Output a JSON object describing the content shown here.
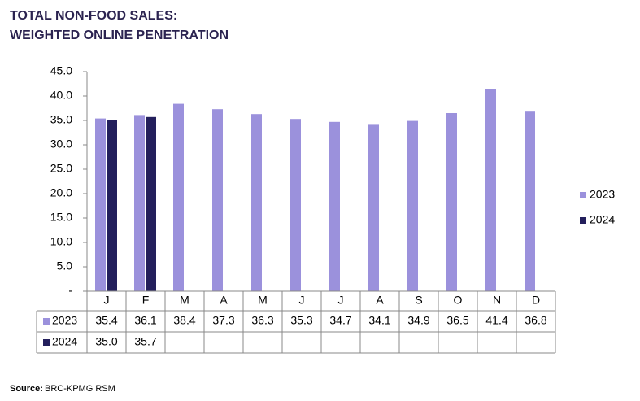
{
  "chart_data": {
    "type": "bar",
    "title": "TOTAL NON-FOOD SALES:",
    "subtitle": "WEIGHTED ONLINE PENETRATION",
    "categories": [
      "J",
      "F",
      "M",
      "A",
      "M",
      "J",
      "J",
      "A",
      "S",
      "O",
      "N",
      "D"
    ],
    "series": [
      {
        "name": "2023",
        "color": "#9b91dc",
        "values": [
          35.4,
          36.1,
          38.4,
          37.3,
          36.3,
          35.3,
          34.7,
          34.1,
          34.9,
          36.5,
          41.4,
          36.8
        ],
        "value_labels": [
          "35.4",
          "36.1",
          "38.4",
          "37.3",
          "36.3",
          "35.3",
          "34.7",
          "34.1",
          "34.9",
          "36.5",
          "41.4",
          "36.8"
        ]
      },
      {
        "name": "2024",
        "color": "#231f5c",
        "values": [
          35.0,
          35.7,
          null,
          null,
          null,
          null,
          null,
          null,
          null,
          null,
          null,
          null
        ],
        "value_labels": [
          "35.0",
          "35.7",
          null,
          null,
          null,
          null,
          null,
          null,
          null,
          null,
          null,
          null
        ]
      }
    ],
    "ylim": [
      0,
      45
    ],
    "yticks": [
      {
        "value": 0,
        "label": "-"
      },
      {
        "value": 5,
        "label": "5.0"
      },
      {
        "value": 10,
        "label": "10.0"
      },
      {
        "value": 15,
        "label": "15.0"
      },
      {
        "value": 20,
        "label": "20.0"
      },
      {
        "value": 25,
        "label": "25.0"
      },
      {
        "value": 30,
        "label": "30.0"
      },
      {
        "value": 35,
        "label": "35.0"
      },
      {
        "value": 40,
        "label": "40.0"
      },
      {
        "value": 45,
        "label": "45.0"
      }
    ],
    "grid": false,
    "legend": "right",
    "source_label": "Source:",
    "source": "BRC-KPMG RSM"
  }
}
